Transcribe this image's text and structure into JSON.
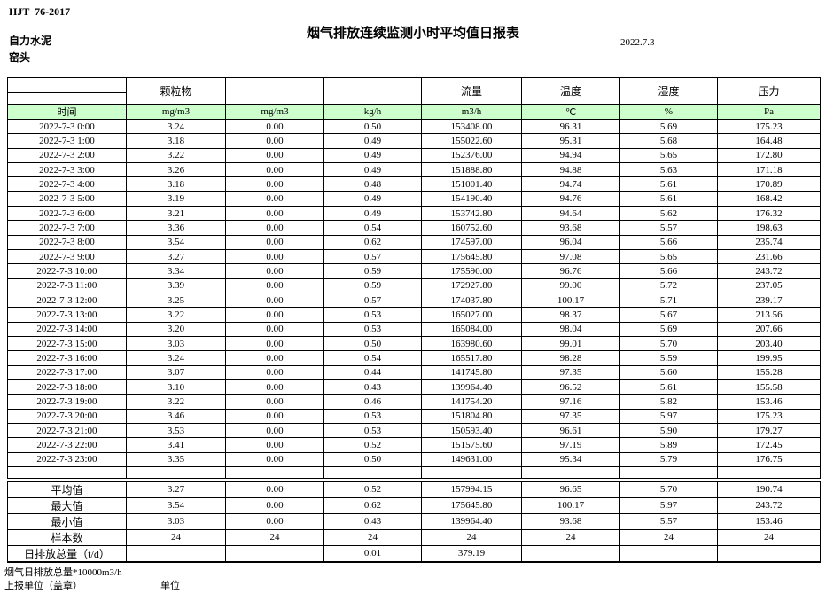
{
  "header": {
    "doc_code": "HJT  76-2017",
    "title": "烟气排放连续监测小时平均值日报表",
    "company": "自力水泥",
    "station": "窑头",
    "date": "2022.7.3"
  },
  "table": {
    "group_headers": [
      "",
      "颗粒物",
      "",
      "",
      "流量",
      "温度",
      "湿度",
      "压力"
    ],
    "unit_row": [
      "时间",
      "mg/m3",
      "mg/m3",
      "kg/h",
      "m3/h",
      "℃",
      "%",
      "Pa"
    ],
    "rows": [
      [
        "2022-7-3 0:00",
        "3.24",
        "0.00",
        "0.50",
        "153408.00",
        "96.31",
        "5.69",
        "175.23"
      ],
      [
        "2022-7-3 1:00",
        "3.18",
        "0.00",
        "0.49",
        "155022.60",
        "95.31",
        "5.68",
        "164.48"
      ],
      [
        "2022-7-3 2:00",
        "3.22",
        "0.00",
        "0.49",
        "152376.00",
        "94.94",
        "5.65",
        "172.80"
      ],
      [
        "2022-7-3 3:00",
        "3.26",
        "0.00",
        "0.49",
        "151888.80",
        "94.88",
        "5.63",
        "171.18"
      ],
      [
        "2022-7-3 4:00",
        "3.18",
        "0.00",
        "0.48",
        "151001.40",
        "94.74",
        "5.61",
        "170.89"
      ],
      [
        "2022-7-3 5:00",
        "3.19",
        "0.00",
        "0.49",
        "154190.40",
        "94.76",
        "5.61",
        "168.42"
      ],
      [
        "2022-7-3 6:00",
        "3.21",
        "0.00",
        "0.49",
        "153742.80",
        "94.64",
        "5.62",
        "176.32"
      ],
      [
        "2022-7-3 7:00",
        "3.36",
        "0.00",
        "0.54",
        "160752.60",
        "93.68",
        "5.57",
        "198.63"
      ],
      [
        "2022-7-3 8:00",
        "3.54",
        "0.00",
        "0.62",
        "174597.00",
        "96.04",
        "5.66",
        "235.74"
      ],
      [
        "2022-7-3 9:00",
        "3.27",
        "0.00",
        "0.57",
        "175645.80",
        "97.08",
        "5.65",
        "231.66"
      ],
      [
        "2022-7-3 10:00",
        "3.34",
        "0.00",
        "0.59",
        "175590.00",
        "96.76",
        "5.66",
        "243.72"
      ],
      [
        "2022-7-3 11:00",
        "3.39",
        "0.00",
        "0.59",
        "172927.80",
        "99.00",
        "5.72",
        "237.05"
      ],
      [
        "2022-7-3 12:00",
        "3.25",
        "0.00",
        "0.57",
        "174037.80",
        "100.17",
        "5.71",
        "239.17"
      ],
      [
        "2022-7-3 13:00",
        "3.22",
        "0.00",
        "0.53",
        "165027.00",
        "98.37",
        "5.67",
        "213.56"
      ],
      [
        "2022-7-3 14:00",
        "3.20",
        "0.00",
        "0.53",
        "165084.00",
        "98.04",
        "5.69",
        "207.66"
      ],
      [
        "2022-7-3 15:00",
        "3.03",
        "0.00",
        "0.50",
        "163980.60",
        "99.01",
        "5.70",
        "203.40"
      ],
      [
        "2022-7-3 16:00",
        "3.24",
        "0.00",
        "0.54",
        "165517.80",
        "98.28",
        "5.59",
        "199.95"
      ],
      [
        "2022-7-3 17:00",
        "3.07",
        "0.00",
        "0.44",
        "141745.80",
        "97.35",
        "5.60",
        "155.28"
      ],
      [
        "2022-7-3 18:00",
        "3.10",
        "0.00",
        "0.43",
        "139964.40",
        "96.52",
        "5.61",
        "155.58"
      ],
      [
        "2022-7-3 19:00",
        "3.22",
        "0.00",
        "0.46",
        "141754.20",
        "97.16",
        "5.82",
        "153.46"
      ],
      [
        "2022-7-3 20:00",
        "3.46",
        "0.00",
        "0.53",
        "151804.80",
        "97.35",
        "5.97",
        "175.23"
      ],
      [
        "2022-7-3 21:00",
        "3.53",
        "0.00",
        "0.53",
        "150593.40",
        "96.61",
        "5.90",
        "179.27"
      ],
      [
        "2022-7-3 22:00",
        "3.41",
        "0.00",
        "0.52",
        "151575.60",
        "97.19",
        "5.89",
        "172.45"
      ],
      [
        "2022-7-3 23:00",
        "3.35",
        "0.00",
        "0.50",
        "149631.00",
        "95.34",
        "5.79",
        "176.75"
      ]
    ],
    "summary": [
      {
        "label": "平均值",
        "values": [
          "3.27",
          "0.00",
          "0.52",
          "157994.15",
          "96.65",
          "5.70",
          "190.74"
        ]
      },
      {
        "label": "最大值",
        "values": [
          "3.54",
          "0.00",
          "0.62",
          "175645.80",
          "100.17",
          "5.97",
          "243.72"
        ]
      },
      {
        "label": "最小值",
        "values": [
          "3.03",
          "0.00",
          "0.43",
          "139964.40",
          "93.68",
          "5.57",
          "153.46"
        ]
      },
      {
        "label": "样本数",
        "values": [
          "24",
          "24",
          "24",
          "24",
          "24",
          "24",
          "24"
        ]
      },
      {
        "label": "日排放总量（t/d）",
        "values": [
          "",
          "",
          "0.01",
          "379.19",
          "",
          "",
          ""
        ]
      }
    ]
  },
  "footer": {
    "note": "烟气日排放总量*10000m3/h",
    "report_unit": "上报单位（盖章）",
    "unit_label": "单位"
  },
  "colors": {
    "unit_row_bg": "#ccffcc",
    "border": "#000000",
    "text": "#000000"
  }
}
